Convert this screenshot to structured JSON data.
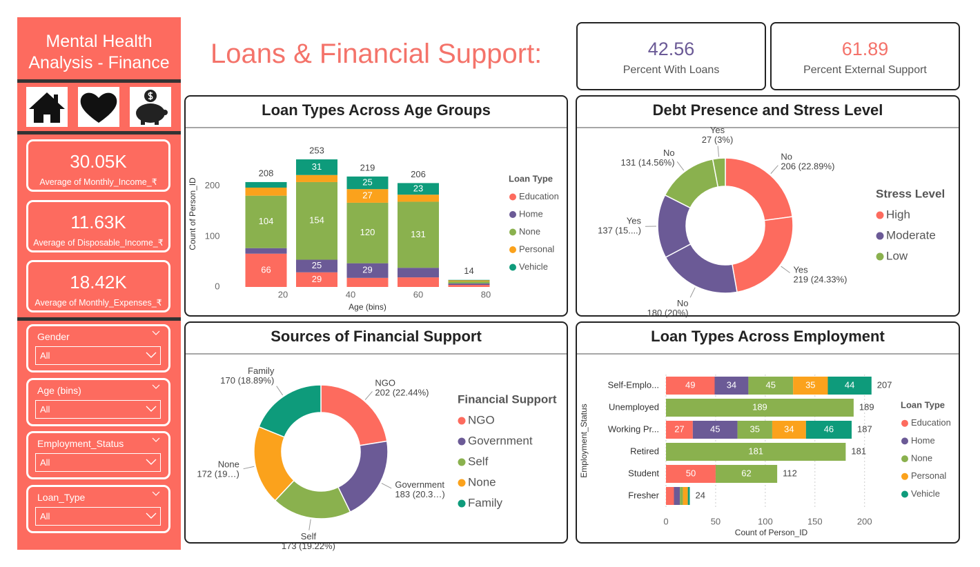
{
  "sidebar": {
    "title": "Mental Health Analysis - Finance",
    "cards": [
      {
        "value": "30.05K",
        "label": "Average of Monthly_Income_₹"
      },
      {
        "value": "11.63K",
        "label": "Average of Disposable_Income_₹"
      },
      {
        "value": "18.42K",
        "label": "Average of Monthly_Expenses_₹"
      }
    ],
    "filters": [
      {
        "label": "Gender",
        "value": "All"
      },
      {
        "label": "Age (bins)",
        "value": "All"
      },
      {
        "label": "Employment_Status",
        "value": "All"
      },
      {
        "label": "Loan_Type",
        "value": "All"
      }
    ]
  },
  "page_title": "Loans & Financial Support:",
  "kpis": [
    {
      "value": 42.56,
      "label": "Percent With Loans",
      "color": "#6B5A96"
    },
    {
      "value": 61.89,
      "label": "Percent External Support",
      "color": "#F4726A"
    }
  ],
  "chart_data": [
    {
      "type": "stacked_bar",
      "title": "Loan Types Across Age Groups",
      "x_label": "Age (bins)",
      "y_label": "Count of Person_ID",
      "x": [
        15,
        30,
        45,
        60,
        75
      ],
      "xlim": [
        5,
        85
      ],
      "xticks": [
        20,
        40,
        60,
        80
      ],
      "ylim": [
        0,
        290
      ],
      "yticks": [
        0,
        100,
        200
      ],
      "grid": false,
      "legend_title": "Loan Type",
      "series": [
        {
          "name": "Education",
          "color": "#FD6B5E",
          "values": [
            66,
            29,
            18,
            19,
            4
          ]
        },
        {
          "name": "Home",
          "color": "#6B5A96",
          "values": [
            11,
            25,
            29,
            19,
            3
          ]
        },
        {
          "name": "None",
          "color": "#8AB14E",
          "values": [
            104,
            154,
            120,
            131,
            4
          ]
        },
        {
          "name": "Personal",
          "color": "#FBA21C",
          "values": [
            16,
            14,
            27,
            14,
            2
          ]
        },
        {
          "name": "Vehicle",
          "color": "#0E9B7B",
          "values": [
            11,
            31,
            25,
            23,
            1
          ]
        }
      ],
      "totals": [
        208,
        253,
        219,
        206,
        14
      ]
    },
    {
      "type": "donut",
      "title": "Debt Presence and Stress Level",
      "categories": [
        "No",
        "Yes",
        "No",
        "Yes",
        "No",
        "Yes"
      ],
      "values": [
        206,
        219,
        180,
        137,
        131,
        27
      ],
      "value_labels": [
        "206 (22.89%)",
        "219 (24.33%)",
        "180 (20%)",
        "137 (15....)",
        "131 (14.56%)",
        "27 (3%)"
      ],
      "colors": [
        "#FD6B5E",
        "#FD6B5E",
        "#6B5A96",
        "#6B5A96",
        "#8AB14E",
        "#8AB14E"
      ],
      "legend_title": "Stress Level",
      "legend": [
        {
          "name": "High",
          "color": "#FD6B5E"
        },
        {
          "name": "Moderate",
          "color": "#6B5A96"
        },
        {
          "name": "Low",
          "color": "#8AB14E"
        }
      ]
    },
    {
      "type": "donut",
      "title": "Sources of Financial Support",
      "categories": [
        "NGO",
        "Government",
        "Self",
        "None",
        "Family"
      ],
      "values": [
        202,
        183,
        173,
        172,
        170
      ],
      "value_labels": [
        "202 (22.44%)",
        "183 (20.3…)",
        "173 (19.22%)",
        "172 (19…)",
        "170 (18.89%)"
      ],
      "colors": [
        "#FD6B5E",
        "#6B5A96",
        "#8AB14E",
        "#FBA21C",
        "#0E9B7B"
      ],
      "legend_title": "Financial Support"
    },
    {
      "type": "stacked_hbar",
      "title": "Loan Types Across Employment",
      "x_label": "Count of Person_ID",
      "y_label": "Employment_Status",
      "categories": [
        "Self-Emplo...",
        "Unemployed",
        "Working Pr...",
        "Retired",
        "Student",
        "Fresher"
      ],
      "xlim": [
        0,
        212
      ],
      "xticks": [
        0,
        50,
        100,
        150,
        200
      ],
      "grid": true,
      "legend_title": "Loan Type",
      "series": [
        {
          "name": "Education",
          "color": "#FD6B5E",
          "values": [
            49,
            0,
            27,
            0,
            50,
            8
          ]
        },
        {
          "name": "Home",
          "color": "#6B5A96",
          "values": [
            34,
            0,
            45,
            0,
            0,
            6
          ]
        },
        {
          "name": "None",
          "color": "#8AB14E",
          "values": [
            45,
            189,
            35,
            181,
            62,
            3
          ]
        },
        {
          "name": "Personal",
          "color": "#FBA21C",
          "values": [
            35,
            0,
            34,
            0,
            0,
            5
          ]
        },
        {
          "name": "Vehicle",
          "color": "#0E9B7B",
          "values": [
            44,
            0,
            46,
            0,
            0,
            2
          ]
        }
      ],
      "totals": [
        207,
        189,
        187,
        181,
        112,
        24
      ]
    }
  ]
}
